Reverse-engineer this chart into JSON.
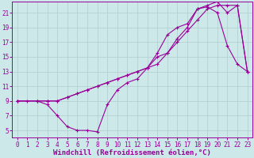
{
  "xlabel": "Windchill (Refroidissement éolien,°C)",
  "background_color": "#cce8e8",
  "line_color": "#990099",
  "xlim": [
    -0.5,
    23.5
  ],
  "ylim": [
    4,
    22.5
  ],
  "xticks": [
    0,
    1,
    2,
    3,
    4,
    5,
    6,
    7,
    8,
    9,
    10,
    11,
    12,
    13,
    14,
    15,
    16,
    17,
    18,
    19,
    20,
    21,
    22,
    23
  ],
  "yticks": [
    5,
    7,
    9,
    11,
    13,
    15,
    17,
    19,
    21
  ],
  "line1_x": [
    0,
    1,
    2,
    3,
    4,
    5,
    6,
    7,
    8,
    9,
    10,
    11,
    12,
    13,
    14,
    15,
    16,
    17,
    18,
    19,
    20,
    21,
    22,
    23
  ],
  "line1_y": [
    9,
    9,
    9,
    8.5,
    7,
    5.5,
    5,
    5,
    4.8,
    8.5,
    10.5,
    11.5,
    12,
    13.5,
    15.5,
    18,
    19,
    19.5,
    21.5,
    21.8,
    21,
    16.5,
    14,
    13
  ],
  "line2_x": [
    0,
    2,
    3,
    4,
    5,
    6,
    7,
    8,
    9,
    10,
    11,
    12,
    13,
    14,
    15,
    16,
    17,
    18,
    19,
    20,
    21,
    22,
    23
  ],
  "line2_y": [
    9,
    9,
    9,
    9,
    9.5,
    10,
    10.5,
    11,
    11.5,
    12,
    12.5,
    13,
    13.5,
    15,
    15.5,
    17,
    18.5,
    20,
    21.5,
    22,
    22,
    22,
    13
  ],
  "line3_x": [
    0,
    2,
    3,
    4,
    5,
    6,
    7,
    8,
    9,
    10,
    11,
    12,
    13,
    14,
    15,
    16,
    17,
    18,
    19,
    20,
    21,
    22,
    23
  ],
  "line3_y": [
    9,
    9,
    9,
    9,
    9.5,
    10,
    10.5,
    11,
    11.5,
    12,
    12.5,
    13,
    13.5,
    14,
    15.5,
    17.5,
    19,
    21.5,
    22,
    22.5,
    21,
    22,
    13
  ],
  "grid_color": "#b0cccc",
  "tick_fontsize": 5.5,
  "xlabel_fontsize": 6.5,
  "marker": "+"
}
